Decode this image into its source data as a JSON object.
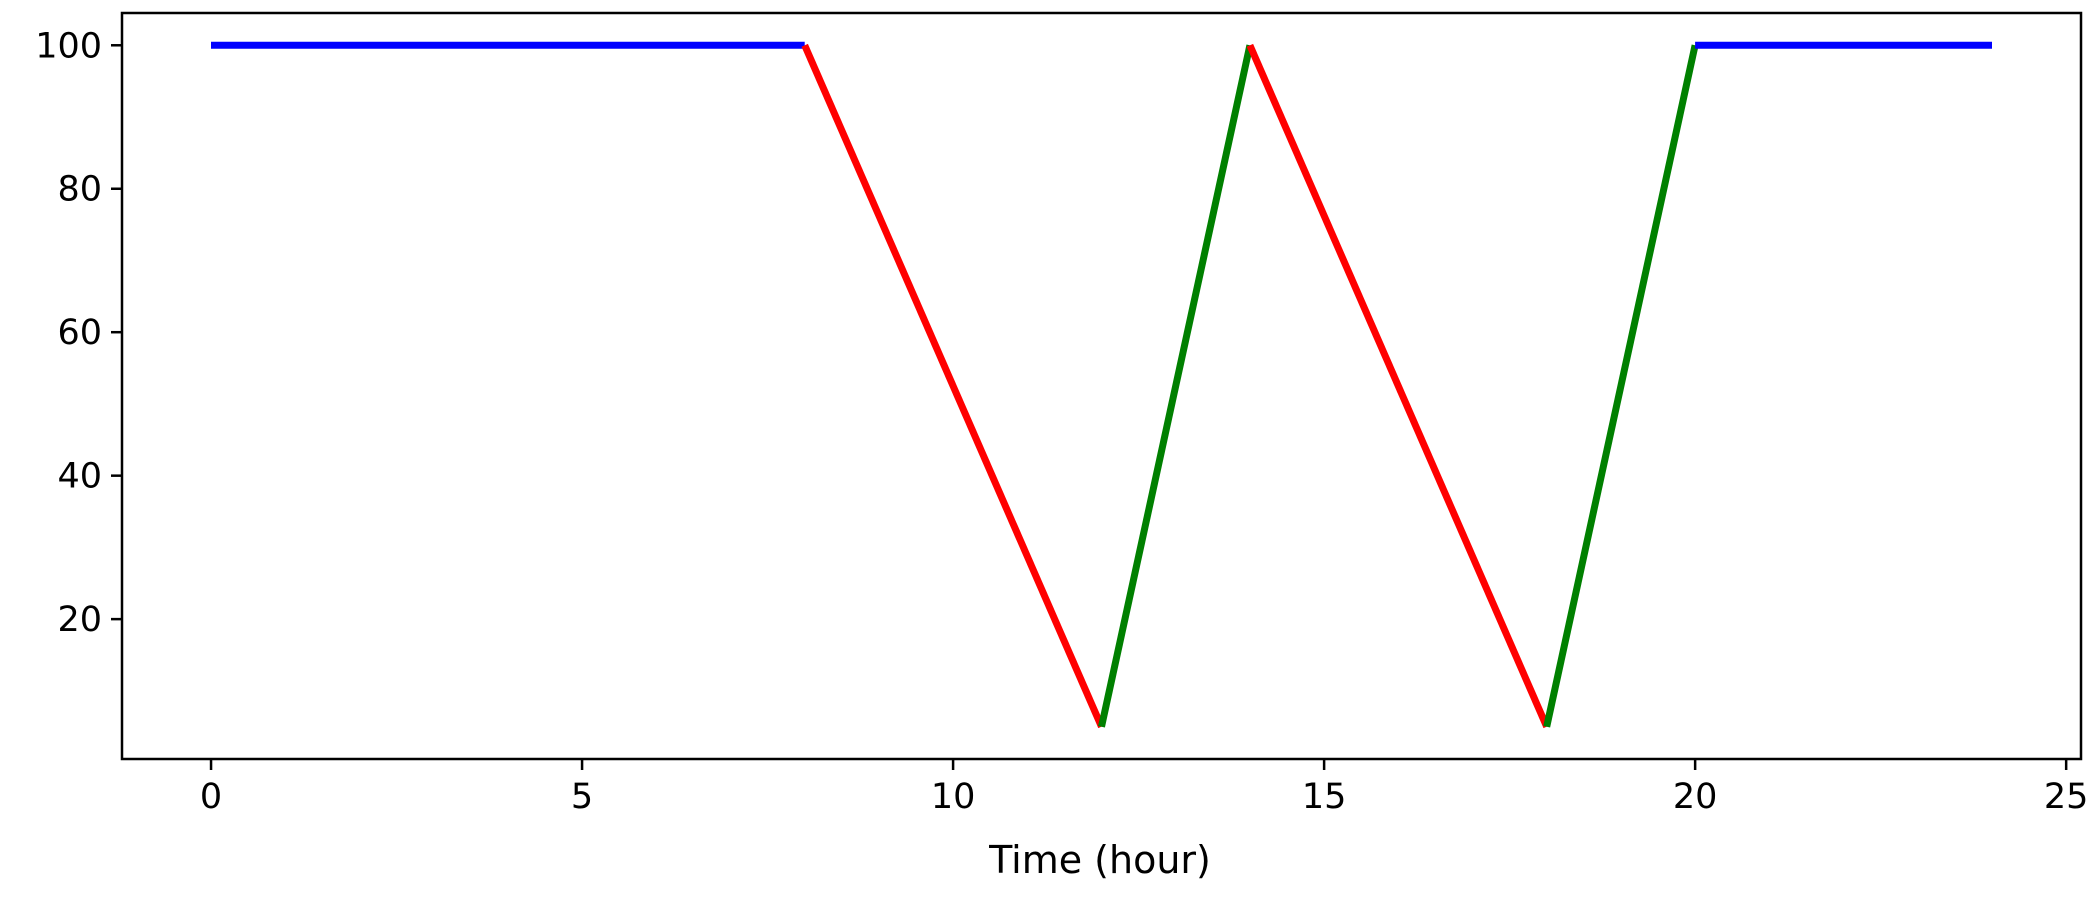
{
  "chart_data": {
    "type": "line",
    "title": "",
    "xlabel": "Time (hour)",
    "ylabel": "",
    "xlim": [
      -1.2,
      25.2
    ],
    "ylim": [
      0.5,
      104.5
    ],
    "x_ticks": [
      0,
      5,
      10,
      15,
      20,
      25
    ],
    "x_tick_labels": [
      "0",
      "5",
      "10",
      "15",
      "20",
      "25"
    ],
    "y_ticks": [
      20,
      40,
      60,
      80,
      100
    ],
    "y_tick_labels": [
      "20",
      "40",
      "60",
      "80",
      "100"
    ],
    "grid": false,
    "segments": [
      {
        "color": "#0000ff",
        "x": [
          0,
          8
        ],
        "y": [
          100,
          100
        ]
      },
      {
        "color": "#ff0000",
        "x": [
          8,
          12
        ],
        "y": [
          100,
          5
        ]
      },
      {
        "color": "#008000",
        "x": [
          12,
          14
        ],
        "y": [
          5,
          100
        ]
      },
      {
        "color": "#ff0000",
        "x": [
          14,
          18
        ],
        "y": [
          100,
          5
        ]
      },
      {
        "color": "#008000",
        "x": [
          18,
          20
        ],
        "y": [
          5,
          100
        ]
      },
      {
        "color": "#0000ff",
        "x": [
          20,
          24
        ],
        "y": [
          100,
          100
        ]
      }
    ]
  }
}
